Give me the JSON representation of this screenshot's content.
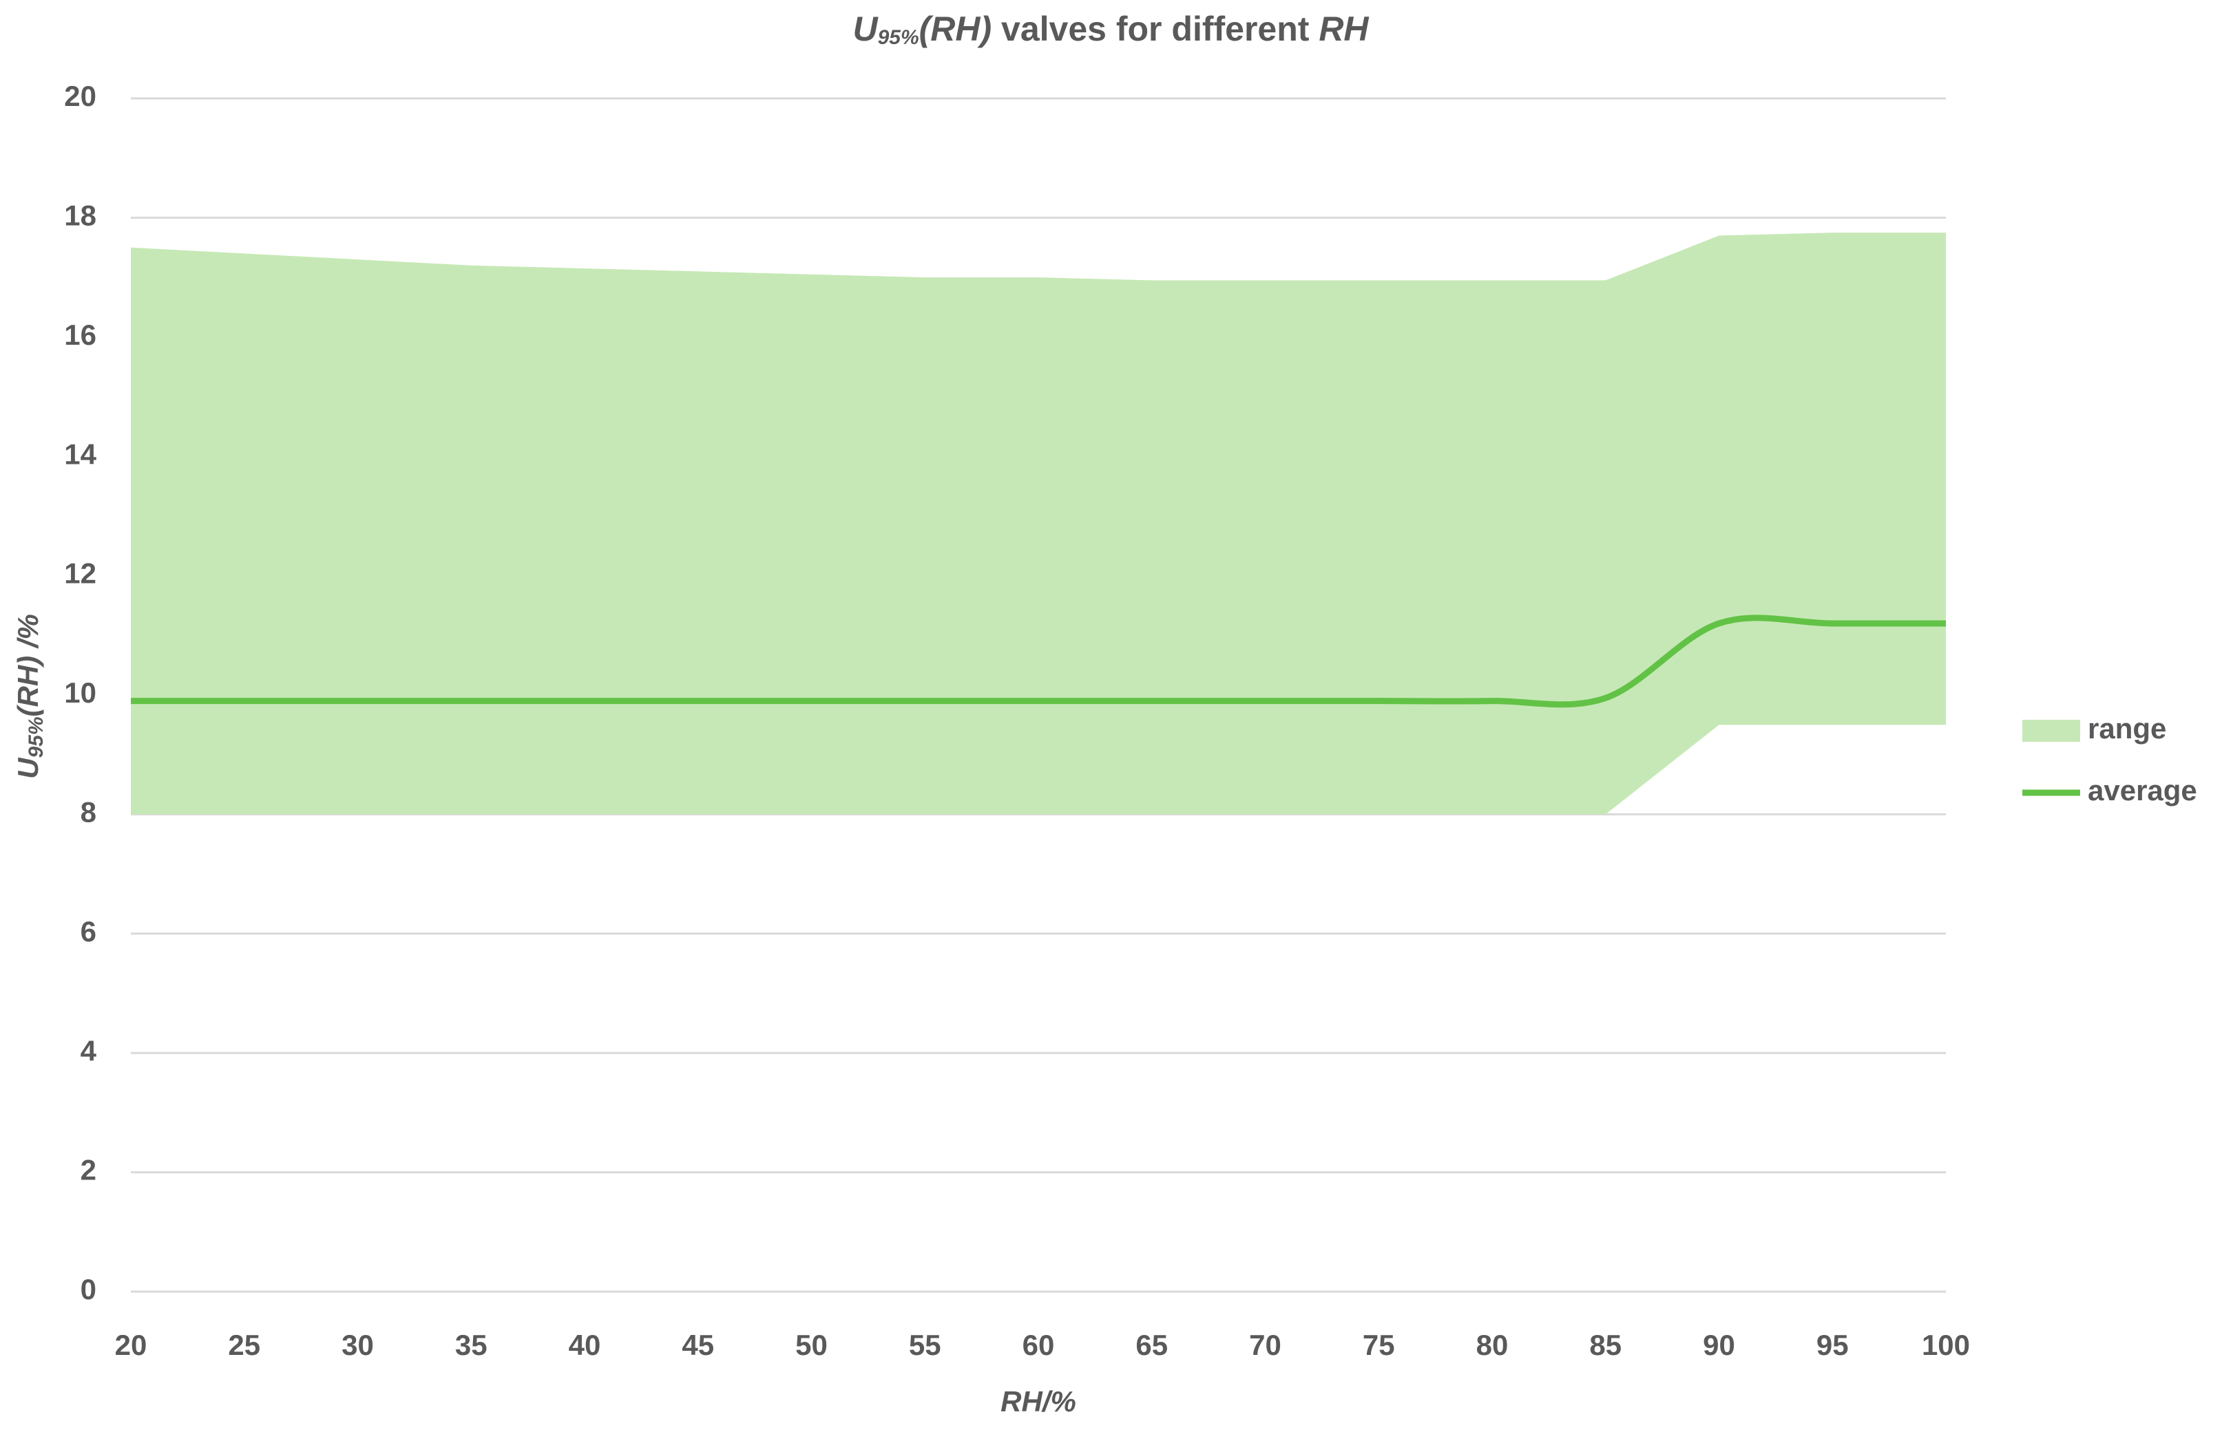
{
  "chart_data": {
    "type": "range-line",
    "title": [
      "U",
      "95%",
      "(RH)",
      " valves for different ",
      "RH"
    ],
    "y_label": [
      "U",
      "95%",
      "(RH) /%"
    ],
    "x_label": "RH/%",
    "x": [
      20,
      25,
      30,
      35,
      40,
      45,
      50,
      55,
      60,
      65,
      70,
      75,
      80,
      85,
      90,
      95,
      100
    ],
    "series": [
      {
        "name": "range",
        "color": "#c6e8b6",
        "upper": [
          17.5,
          17.4,
          17.3,
          17.2,
          17.15,
          17.1,
          17.05,
          17.0,
          17.0,
          16.95,
          16.95,
          16.95,
          16.95,
          16.95,
          17.7,
          17.75,
          17.75
        ],
        "lower": [
          8,
          8,
          8,
          8,
          8,
          8,
          8,
          8,
          8,
          8,
          8,
          8,
          8,
          8,
          9.5,
          9.5,
          9.5
        ]
      },
      {
        "name": "average",
        "color": "#62c245",
        "values": [
          9.9,
          9.9,
          9.9,
          9.9,
          9.9,
          9.9,
          9.9,
          9.9,
          9.9,
          9.9,
          9.9,
          9.9,
          9.9,
          9.95,
          11.2,
          11.2,
          11.2
        ]
      }
    ],
    "xlim": [
      20,
      100
    ],
    "xticks": [
      20,
      25,
      30,
      35,
      40,
      45,
      50,
      55,
      60,
      65,
      70,
      75,
      80,
      85,
      90,
      95,
      100
    ],
    "ylim": [
      0,
      20
    ],
    "yticks": [
      0,
      2,
      4,
      6,
      8,
      10,
      12,
      14,
      16,
      18,
      20
    ],
    "grid": true,
    "legend": "right"
  }
}
